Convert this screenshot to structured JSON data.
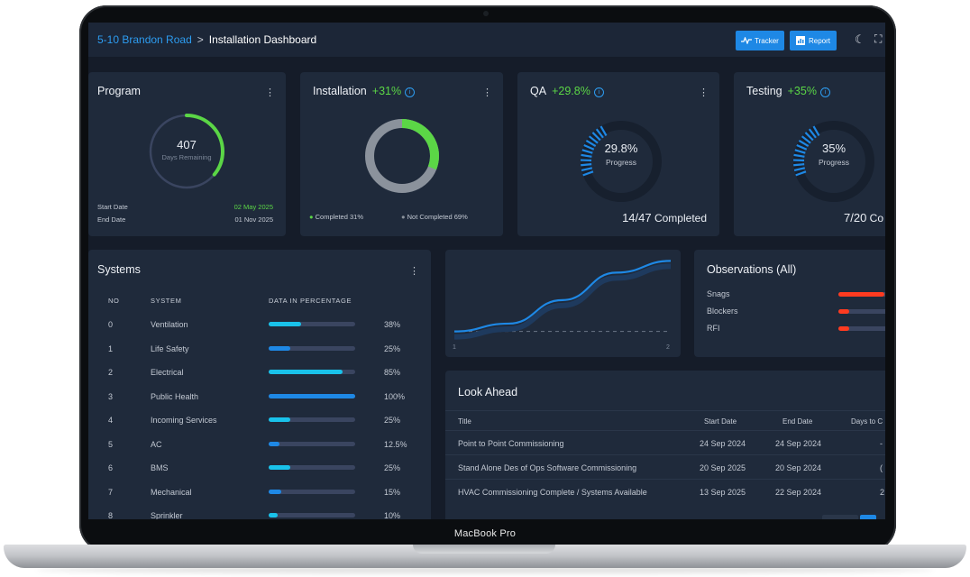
{
  "device_label": "MacBook Pro",
  "header": {
    "breadcrumb_project": "5-10 Brandon Road",
    "breadcrumb_separator": ">",
    "breadcrumb_page": "Installation Dashboard",
    "tracker_label": "Tracker",
    "report_label": "Report"
  },
  "program": {
    "title": "Program",
    "days_value": "407",
    "days_label": "Days Remaining",
    "start_label": "Start Date",
    "start_value": "02 May 2025",
    "end_label": "End Date",
    "end_value": "01 Nov 2025",
    "progress_fraction": 0.36
  },
  "installation": {
    "title": "Installation",
    "change": "+31%",
    "completed_legend": "Completed 31%",
    "not_completed_legend": "Not Completed 69%",
    "completed_fraction": 0.31
  },
  "qa": {
    "title": "QA",
    "change": "+29.8%",
    "gauge_value": "29.8%",
    "gauge_label": "Progress",
    "count": "14/47",
    "count_suffix": "Completed",
    "progress_fraction": 0.298
  },
  "testing": {
    "title": "Testing",
    "change": "+35%",
    "gauge_value": "35%",
    "gauge_label": "Progress",
    "count": "7/20",
    "count_suffix": "Co",
    "progress_fraction": 0.35
  },
  "systems": {
    "title": "Systems",
    "headers": [
      "NO",
      "SYSTEM",
      "DATA IN PERCENTAGE"
    ],
    "rows": [
      {
        "no": "0",
        "name": "Ventilation",
        "pct": "38%",
        "value": 0.38,
        "color": "#19c2ea"
      },
      {
        "no": "1",
        "name": "Life Safety",
        "pct": "25%",
        "value": 0.25,
        "color": "#1e88e5"
      },
      {
        "no": "2",
        "name": "Electrical",
        "pct": "85%",
        "value": 0.85,
        "color": "#19c2ea"
      },
      {
        "no": "3",
        "name": "Public Health",
        "pct": "100%",
        "value": 1.0,
        "color": "#1e88e5"
      },
      {
        "no": "4",
        "name": "Incoming Services",
        "pct": "25%",
        "value": 0.25,
        "color": "#19c2ea"
      },
      {
        "no": "5",
        "name": "AC",
        "pct": "12.5%",
        "value": 0.125,
        "color": "#1e88e5"
      },
      {
        "no": "6",
        "name": "BMS",
        "pct": "25%",
        "value": 0.25,
        "color": "#19c2ea"
      },
      {
        "no": "7",
        "name": "Mechanical",
        "pct": "15%",
        "value": 0.15,
        "color": "#1e88e5"
      },
      {
        "no": "8",
        "name": "Sprinkler",
        "pct": "10%",
        "value": 0.1,
        "color": "#19c2ea"
      }
    ]
  },
  "chart_data": {
    "type": "line",
    "x_ticks": [
      "1",
      "2"
    ],
    "series": [
      {
        "values": [
          [
            1,
            0.05
          ],
          [
            1.25,
            0.15
          ],
          [
            1.5,
            0.45
          ],
          [
            1.75,
            0.8
          ],
          [
            2,
            0.95
          ]
        ],
        "color": "#1e88e5"
      }
    ],
    "baseline_dashed": 0.05,
    "grid": false
  },
  "observations": {
    "title": "Observations (All)",
    "items": [
      {
        "label": "Snags",
        "value": 0.85
      },
      {
        "label": "Blockers",
        "value": 0.2
      },
      {
        "label": "RFI",
        "value": 0.2
      }
    ]
  },
  "lookahead": {
    "title": "Look Ahead",
    "columns": [
      "Title",
      "Start Date",
      "End Date",
      "Days to C"
    ],
    "rows": [
      {
        "title": "Point to Point Commissioning",
        "start": "24 Sep 2024",
        "end": "24 Sep 2024",
        "days": "-"
      },
      {
        "title": "Stand Alone Des of Ops Software Commissioning",
        "start": "20 Sep 2025",
        "end": "20 Sep 2024",
        "days": "("
      },
      {
        "title": "HVAC Commissioning Complete / Systems Available",
        "start": "13 Sep 2025",
        "end": "22 Sep 2024",
        "days": "2"
      }
    ]
  },
  "colors": {
    "background": "#151c29",
    "card": "#1f2a3b",
    "accent_blue": "#1e88e5",
    "accent_green": "#5bd646",
    "accent_red": "#ff3b20"
  }
}
